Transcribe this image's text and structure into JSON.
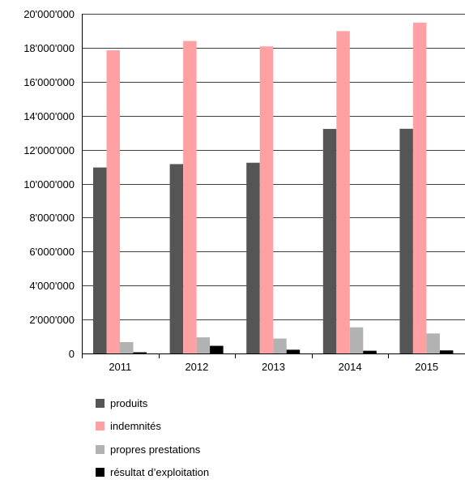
{
  "chart_data": {
    "type": "bar",
    "categories": [
      "2011",
      "2012",
      "2013",
      "2014",
      "2015"
    ],
    "series": [
      {
        "name": "produits",
        "color": "#555555",
        "values": [
          10950000,
          11150000,
          11230000,
          13220000,
          13230000
        ]
      },
      {
        "name": "indemnités",
        "color": "#ffa0a3",
        "values": [
          17850000,
          18400000,
          18080000,
          18980000,
          19480000
        ]
      },
      {
        "name": "propres prestations",
        "color": "#b2b2b2",
        "values": [
          670000,
          950000,
          880000,
          1540000,
          1180000
        ]
      },
      {
        "name": "résultat d’exploitation",
        "color": "#000000",
        "values": [
          70000,
          450000,
          220000,
          160000,
          180000
        ]
      }
    ],
    "ylim": [
      0,
      20000000
    ],
    "yticks": [
      "0",
      "2'000'000",
      "4'000'000",
      "6'000'000",
      "8'000'000",
      "10'000'000",
      "12'000'000",
      "14'000'000",
      "16'000'000",
      "18'000'000",
      "20'000'000"
    ],
    "grid": true,
    "legend_position": "bottom-left"
  }
}
